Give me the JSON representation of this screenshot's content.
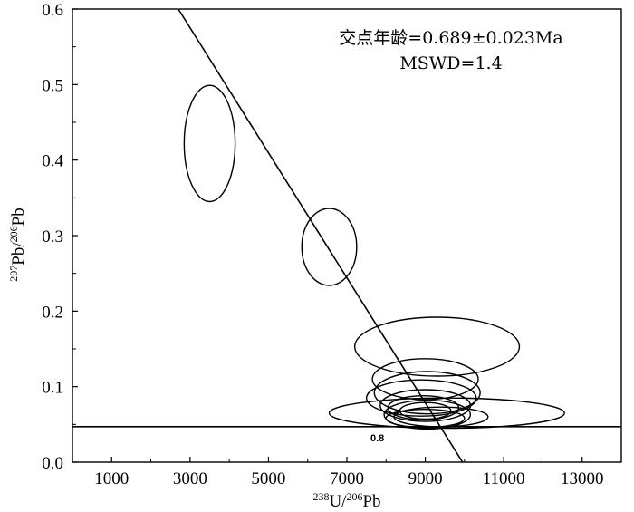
{
  "chart_data": {
    "type": "scatter",
    "plot_kind": "Tera-Wasserburg concordia with error ellipses",
    "xlabel": {
      "sup1": "238",
      "main1": "U/",
      "sup2": "206",
      "main2": "Pb"
    },
    "ylabel": {
      "sup1": "207",
      "main1": "Pb/",
      "sup2": "206",
      "main2": "Pb"
    },
    "xlim": [
      0,
      14000
    ],
    "ylim": [
      0,
      0.6
    ],
    "x_ticks": [
      1000,
      3000,
      5000,
      7000,
      9000,
      11000,
      13000
    ],
    "x_tick_labels": [
      "1000",
      "3000",
      "5000",
      "7000",
      "9000",
      "11000",
      "13000"
    ],
    "y_ticks": [
      0.0,
      0.1,
      0.2,
      0.3,
      0.4,
      0.5,
      0.6
    ],
    "y_tick_labels": [
      "0.0",
      "0.1",
      "0.2",
      "0.3",
      "0.4",
      "0.5",
      "0.6"
    ],
    "annotation_lines": [
      "交点年龄=0.689±0.023Ma",
      "MSWD=1.4"
    ],
    "concordia": {
      "label": "0.8",
      "y_value": 0.047,
      "color": "#000000"
    },
    "regression_line": {
      "points": [
        [
          2700,
          0.6
        ],
        [
          9950,
          0.0
        ]
      ],
      "color": "#000000"
    },
    "ellipses": [
      {
        "cx": 3500,
        "cy": 0.422,
        "rx": 650,
        "ry": 0.077
      },
      {
        "cx": 6550,
        "cy": 0.285,
        "rx": 700,
        "ry": 0.051
      },
      {
        "cx": 9300,
        "cy": 0.153,
        "rx": 2100,
        "ry": 0.039
      },
      {
        "cx": 9550,
        "cy": 0.065,
        "rx": 3000,
        "ry": 0.02
      },
      {
        "cx": 9000,
        "cy": 0.11,
        "rx": 1350,
        "ry": 0.027
      },
      {
        "cx": 9050,
        "cy": 0.092,
        "rx": 1350,
        "ry": 0.028
      },
      {
        "cx": 8900,
        "cy": 0.085,
        "rx": 1400,
        "ry": 0.024
      },
      {
        "cx": 9000,
        "cy": 0.075,
        "rx": 1150,
        "ry": 0.021
      },
      {
        "cx": 8950,
        "cy": 0.072,
        "rx": 900,
        "ry": 0.016
      },
      {
        "cx": 9050,
        "cy": 0.063,
        "rx": 1100,
        "ry": 0.019
      },
      {
        "cx": 9000,
        "cy": 0.068,
        "rx": 650,
        "ry": 0.011
      },
      {
        "cx": 9000,
        "cy": 0.058,
        "rx": 1000,
        "ry": 0.012
      },
      {
        "cx": 9400,
        "cy": 0.06,
        "rx": 1200,
        "ry": 0.013
      }
    ]
  }
}
